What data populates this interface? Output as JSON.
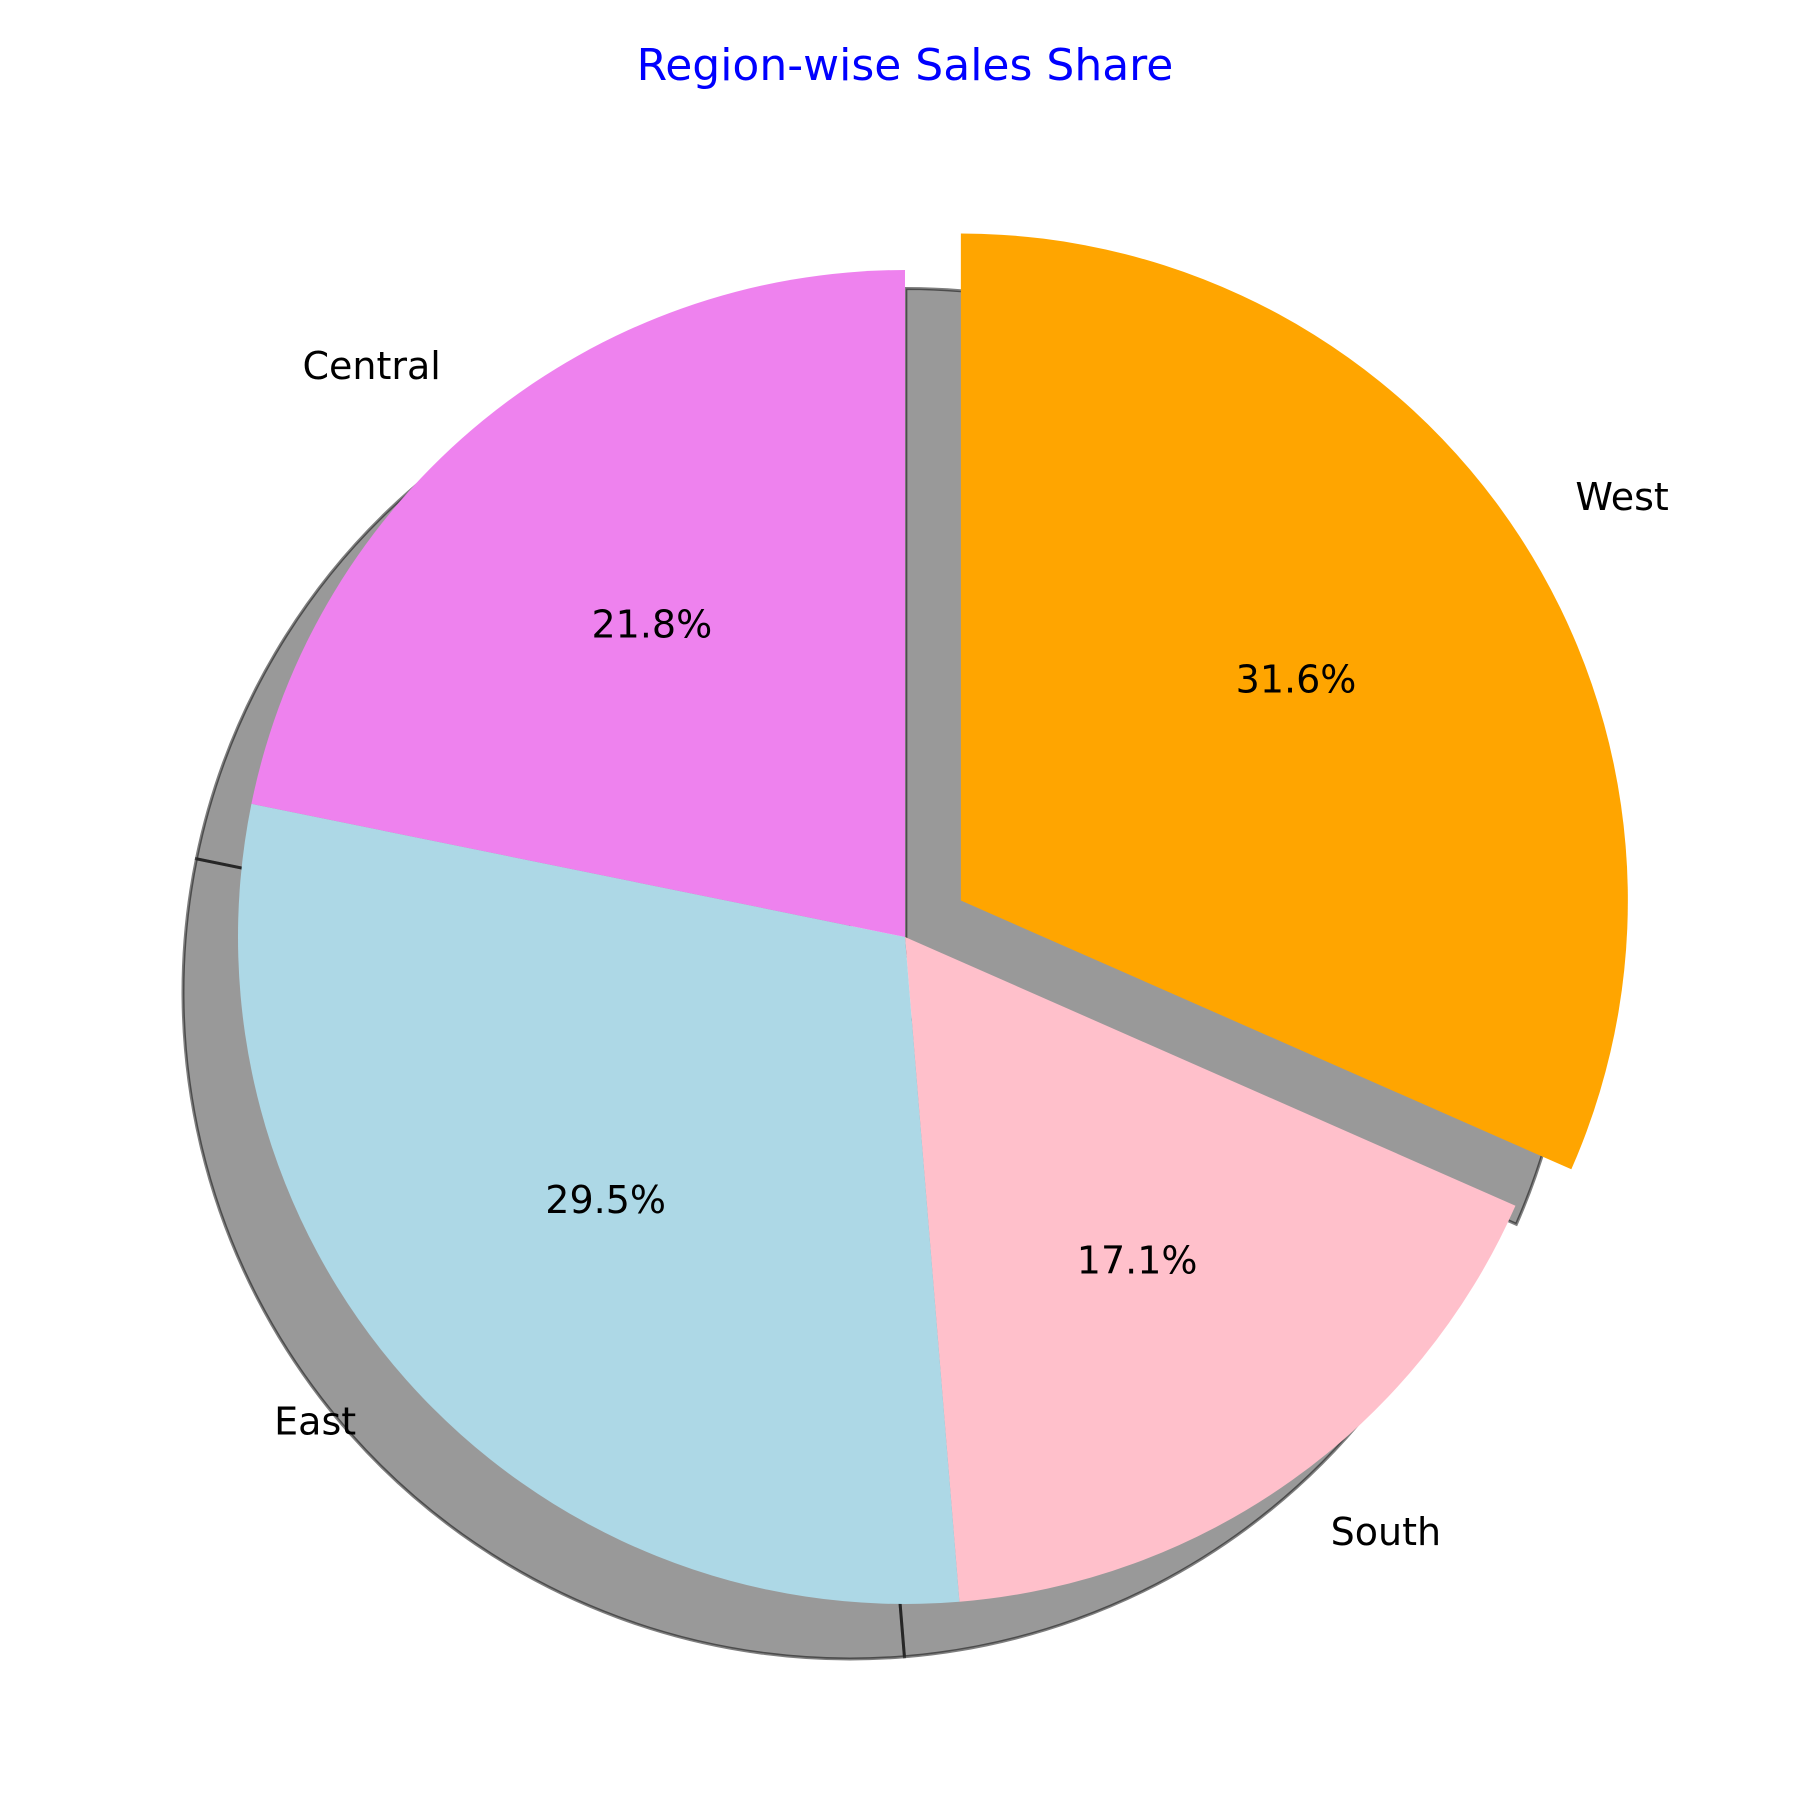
{
  "chart_data": {
    "type": "pie",
    "title": "Region-wise Sales Share",
    "title_color": "#0000ff",
    "categories": [
      "West",
      "South",
      "East",
      "Central"
    ],
    "values": [
      31.6,
      17.1,
      29.5,
      21.8
    ],
    "percent_labels": [
      "31.6%",
      "17.1%",
      "29.5%",
      "21.8%"
    ],
    "colors": [
      "#ffa500",
      "#ffc0cb",
      "#add8e6",
      "#ee82ee"
    ],
    "exploded": [
      "West"
    ],
    "start_angle_deg": 90,
    "direction": "clockwise",
    "shadow": true
  }
}
